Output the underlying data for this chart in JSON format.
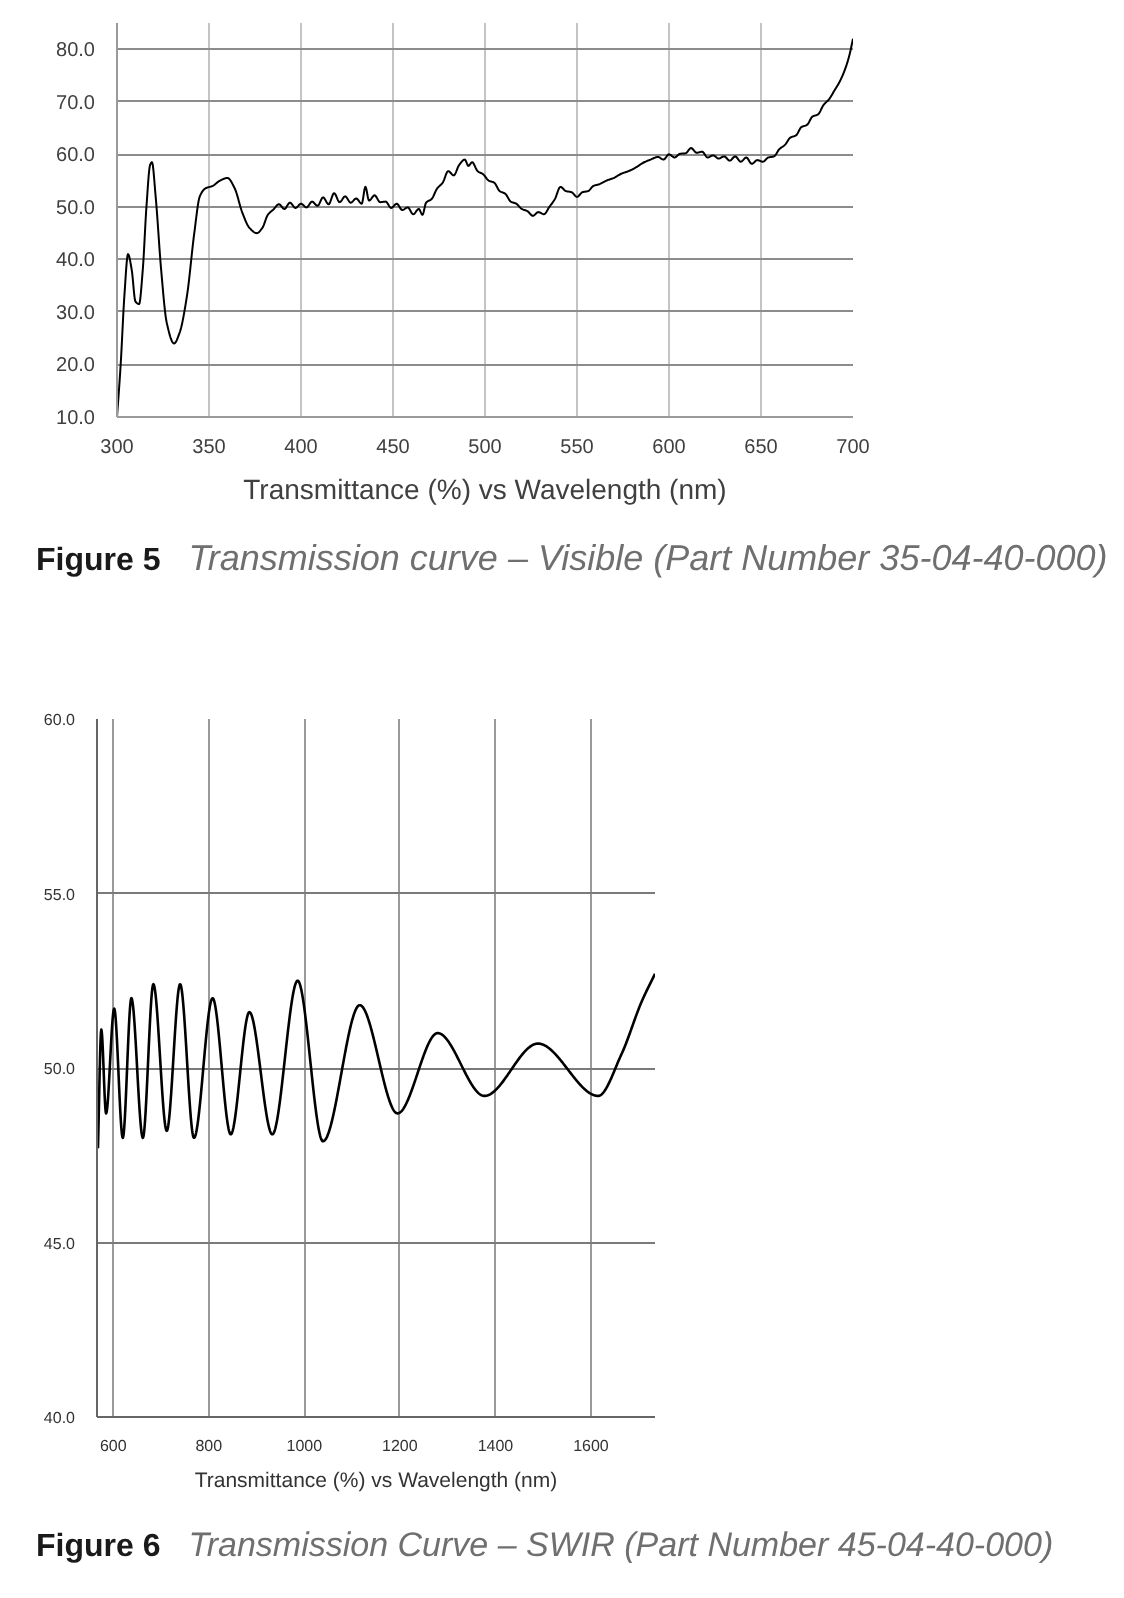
{
  "chart_data": [
    {
      "type": "line",
      "xlabel": "Transmittance (%) vs Wavelength (nm)",
      "annotations": [
        "Figure 5",
        "Transmission curve – Visible (Part Number 35-04-40-000)"
      ],
      "series": [
        {
          "color": "#000000",
          "x": [
            300,
            302,
            304,
            306,
            308,
            310,
            312,
            314,
            316,
            318,
            319,
            321,
            324,
            327,
            331,
            334,
            338,
            342,
            345,
            348,
            352,
            356,
            360,
            364,
            368,
            372,
            376,
            379,
            382,
            385,
            388,
            391,
            394,
            397,
            400,
            403,
            406,
            409,
            412,
            415,
            418,
            421,
            424,
            427,
            430,
            433,
            435,
            437,
            440,
            443,
            446,
            449,
            452,
            455,
            458,
            461,
            464,
            466,
            468,
            471,
            474,
            477,
            480,
            483,
            486,
            489,
            491,
            493,
            496,
            499,
            502,
            505,
            508,
            511,
            514,
            517,
            520,
            523,
            526,
            529,
            532,
            535,
            538,
            541,
            544,
            547,
            550,
            553,
            556,
            559,
            562,
            566,
            570,
            574,
            578,
            582,
            586,
            590,
            594,
            597,
            600,
            603,
            606,
            609,
            612,
            615,
            618,
            621,
            624,
            627,
            630,
            633,
            636,
            639,
            642,
            645,
            648,
            651,
            654,
            657,
            660,
            663,
            666,
            669,
            672,
            675,
            678,
            681,
            684,
            687,
            690,
            693,
            696,
            698,
            700
          ],
          "values": [
            10,
            20,
            33,
            41,
            38,
            32,
            31.5,
            38,
            50,
            58,
            58.5,
            52,
            38,
            28,
            24,
            26,
            33,
            45,
            52,
            53.5,
            54,
            55,
            55.5,
            53.5,
            49,
            46,
            45,
            46,
            48.5,
            49.5,
            50.5,
            49.6,
            50.8,
            49.8,
            50.6,
            49.9,
            51,
            50.2,
            51.8,
            50.5,
            52.6,
            50.9,
            52,
            50.8,
            51.6,
            50.6,
            53.8,
            51.2,
            52.2,
            50.9,
            51,
            49.8,
            50.6,
            49.4,
            49.9,
            48.6,
            49.6,
            48.5,
            50.8,
            51.5,
            53.5,
            54.6,
            56.8,
            56,
            58,
            59,
            57.8,
            58.5,
            56.8,
            56.2,
            55,
            54.6,
            53,
            52.5,
            51,
            50.6,
            49.6,
            49.2,
            48.3,
            49,
            48.6,
            50,
            51.5,
            53.8,
            53,
            52.8,
            51.9,
            52.8,
            53,
            54,
            54.3,
            55,
            55.5,
            56.3,
            56.8,
            57.5,
            58.4,
            59,
            59.5,
            59,
            60,
            59.4,
            60.1,
            60.2,
            61.2,
            60.3,
            60.5,
            59.4,
            59.8,
            59.2,
            59.6,
            58.8,
            59.6,
            58.6,
            59.4,
            58.2,
            58.9,
            58.6,
            59.4,
            59.6,
            61,
            61.8,
            63.2,
            63.6,
            65.2,
            65.6,
            67.2,
            67.6,
            69.4,
            70.5,
            72.2,
            74,
            76.5,
            78.8,
            82
          ]
        }
      ],
      "xlim": [
        300,
        700
      ],
      "ylim": [
        10,
        85
      ],
      "xticks": [
        300,
        350,
        400,
        450,
        500,
        550,
        600,
        650,
        700
      ],
      "yticks": [
        {
          "value": 10,
          "label": "10.0"
        },
        {
          "value": 20,
          "label": "20.0"
        },
        {
          "value": 30,
          "label": "30.0"
        },
        {
          "value": 40,
          "label": "40.0"
        },
        {
          "value": 50,
          "label": "50.0"
        },
        {
          "value": 60,
          "label": "60.0"
        },
        {
          "value": 70,
          "label": "70.0"
        },
        {
          "value": 80,
          "label": "80.0"
        }
      ],
      "grid": true
    },
    {
      "type": "line",
      "xlabel": "Transmittance (%) vs Wavelength (nm)",
      "annotations": [
        "Figure 6",
        "Transmission Curve – SWIR (Part Number 45-04-40-000)"
      ],
      "series": [
        {
          "color": "#000000",
          "x": [
            568,
            575,
            585,
            602,
            620,
            638,
            662,
            684,
            712,
            740,
            769,
            808,
            846,
            885,
            933,
            986,
            1039,
            1116,
            1195,
            1279,
            1377,
            1489,
            1615,
            1664,
            1706,
            1734
          ],
          "values": [
            47.7,
            51.1,
            48.7,
            51.7,
            48.0,
            52.0,
            48.0,
            52.4,
            48.2,
            52.4,
            48.0,
            52.0,
            48.1,
            51.6,
            48.1,
            52.5,
            47.9,
            51.8,
            48.7,
            51.0,
            49.2,
            50.7,
            49.2,
            50.4,
            51.9,
            52.7
          ]
        }
      ],
      "xlim": [
        566,
        1734
      ],
      "ylim": [
        40,
        60
      ],
      "xticks": [
        600,
        800,
        1000,
        1200,
        1400,
        1600
      ],
      "yticks": [
        {
          "value": 40,
          "label": "40.0"
        },
        {
          "value": 45,
          "label": "45.0"
        },
        {
          "value": 50,
          "label": "50.0"
        },
        {
          "value": 55,
          "label": "55.0"
        },
        {
          "value": 60,
          "label": "60.0"
        }
      ],
      "grid": true
    }
  ]
}
